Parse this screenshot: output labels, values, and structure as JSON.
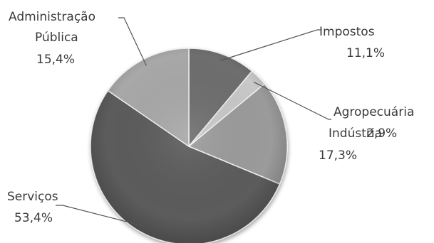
{
  "chart_data": {
    "type": "pie",
    "title": "",
    "slices": [
      {
        "label": "Impostos",
        "value": 11.1,
        "value_label": "11,1%",
        "color": "#6e6e6e"
      },
      {
        "label": "Agropecuária",
        "value": 2.9,
        "value_label": "2,9%",
        "color": "#c8c8c8"
      },
      {
        "label": "Indústria",
        "value": 17.3,
        "value_label": "17,3%",
        "color": "#9b9b9b"
      },
      {
        "label": "Serviços",
        "value": 53.4,
        "value_label": "53,4%",
        "color": "#5c5c5c"
      },
      {
        "label": "Administração Pública",
        "label_lines": [
          "Administração",
          "Pública"
        ],
        "value": 15.4,
        "value_label": "15,4%",
        "color": "#a8a8a8"
      }
    ],
    "start_angle_deg": 0,
    "direction": "clockwise",
    "style": "3d-shaded"
  }
}
